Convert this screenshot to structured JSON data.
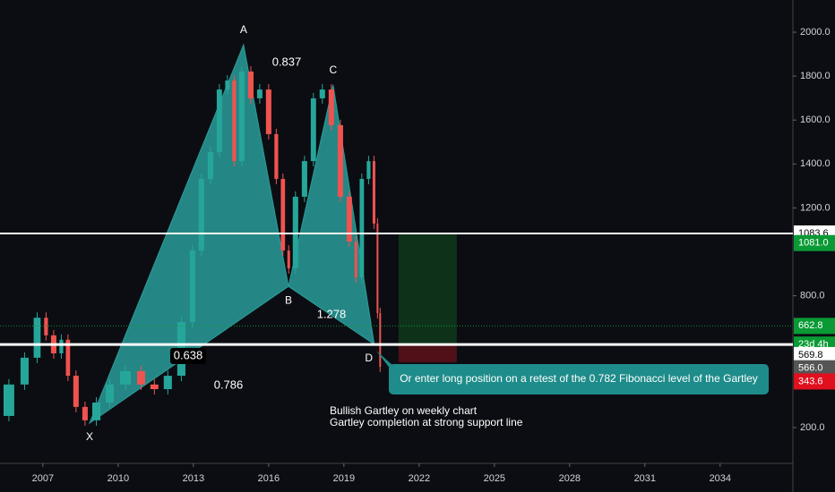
{
  "chart_data": {
    "type": "candlestick",
    "xlim": [
      2005.29,
      2036.9
    ],
    "ylim": [
      37,
      2146.6
    ],
    "xticks": [
      2007,
      2010,
      2013,
      2016,
      2019,
      2022,
      2025,
      2028,
      2031,
      2034
    ],
    "yticks": [
      {
        "value": 200,
        "label": "200.0"
      },
      {
        "value": 800,
        "label": "800.0"
      },
      {
        "value": 1200,
        "label": "1200.0"
      },
      {
        "value": 1400,
        "label": "1400.0"
      },
      {
        "value": 1600,
        "label": "1600.0"
      },
      {
        "value": 1800,
        "label": "1800.0"
      },
      {
        "value": 2000,
        "label": "2000.0"
      }
    ],
    "up_color": "#26a69a",
    "down_color": "#ef5350",
    "price": {
      "x": [
        2005.29,
        2006.0,
        2006.54,
        2007.0,
        2007.25,
        2007.61,
        2007.86,
        2008.14,
        2008.5,
        2008.86,
        2009.4,
        2009.93,
        2010.65,
        2011.18,
        2011.71,
        2012.25,
        2012.79,
        2013.14,
        2013.5,
        2013.86,
        2014.21,
        2014.5,
        2014.75,
        2015.11,
        2015.47,
        2015.82,
        2016.18,
        2016.43,
        2016.71,
        2016.89,
        2017.25,
        2017.61,
        2017.96,
        2018.32,
        2018.68,
        2019.04,
        2019.39,
        2019.57,
        2019.86,
        2020.11,
        2020.29,
        2020.39,
        2020.5
      ],
      "values": [
        253,
        396,
        518,
        700,
        620,
        538,
        600,
        436,
        294,
        233,
        314,
        396,
        457,
        396,
        375,
        436,
        680,
        1006,
        1332,
        1454,
        1739,
        1780,
        1413,
        1821,
        1699,
        1739,
        1536,
        1332,
        1006,
        925,
        1251,
        1413,
        1699,
        1739,
        1577,
        1251,
        1047,
        884,
        1332,
        1413,
        1129,
        721,
        477
      ]
    },
    "pattern": {
      "color": "#2a9d9a",
      "points": [
        {
          "label": "X",
          "x": 2008.86,
          "y": 220
        },
        {
          "label": "A",
          "x": 2015.0,
          "y": 1943
        },
        {
          "label": "B",
          "x": 2016.79,
          "y": 843
        },
        {
          "label": "C",
          "x": 2018.57,
          "y": 1760
        },
        {
          "label": "D",
          "x": 2020.21,
          "y": 579
        }
      ],
      "ratios": [
        "0.837",
        "1.278",
        "0.638",
        "0.786"
      ]
    },
    "lines": [
      {
        "value": 1083.6
      },
      {
        "value": 578
      }
    ],
    "position": {
      "x": [
        2021.18,
        2023.5
      ],
      "entry": 578,
      "target": 1083.6,
      "stop": 497
    },
    "price_tags": [
      {
        "value": 1083.6,
        "label": "1083.6",
        "color": "#ffffff"
      },
      {
        "value": 1040,
        "label": "1081.0",
        "color": "#0a9a35"
      },
      {
        "value": 662.8,
        "label": "662.8",
        "color": "#0a9a35"
      },
      {
        "value": 578,
        "label": "23d 4h",
        "color": "#0a9a35"
      },
      {
        "value": 530,
        "label": "569.8",
        "color": "#ffffff"
      },
      {
        "value": 470,
        "label": "566.0",
        "color": "#555555"
      },
      {
        "value": 410,
        "label": "343.6",
        "color": "#e0101e"
      }
    ],
    "notes": [
      "Bullish Gartley on weekly chart",
      "Gartley completion at strong support line"
    ],
    "callout": "Or enter long position on a retest of the 0.782 Fibonacci level of the Gartley"
  }
}
